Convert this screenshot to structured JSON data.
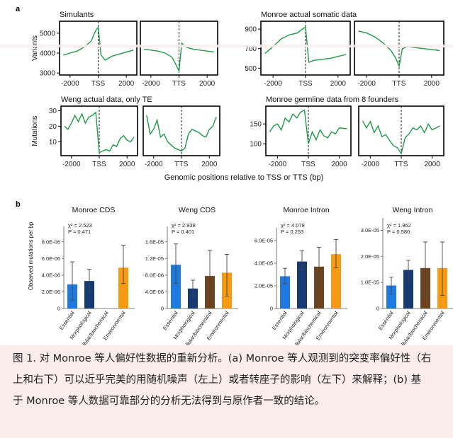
{
  "panel_a": {
    "label": "a",
    "x_axis_label": "Genomic positions relative to TSS or TTS (bp)",
    "x_ticks": [
      "-2000",
      "TSS",
      "2000",
      "-2000",
      "TTS",
      "2000"
    ]
  },
  "panel_b": {
    "label": "b",
    "y_axis_label": "Observed mutations per bp"
  },
  "colors": {
    "line": "#1f9a46",
    "Essential": "#1f7ae0",
    "Morphological": "#173a73",
    "Cellular/biochemical": "#6e4420",
    "Environmental": "#f59a12"
  },
  "chart_data": [
    {
      "type": "line",
      "title": "Simulants",
      "ylabel": "Variants",
      "yticks": [
        "3000",
        "4000",
        "5000"
      ],
      "ylim": [
        2900,
        5600
      ],
      "series": [
        {
          "name": "TSS",
          "x": [
            -2500,
            -2000,
            -1500,
            -1000,
            -500,
            -200,
            0,
            200,
            500,
            1000,
            1500,
            2000,
            2500
          ],
          "y": [
            3900,
            4000,
            4100,
            4300,
            4600,
            5100,
            5300,
            3900,
            3650,
            3850,
            3950,
            4050,
            4150
          ]
        },
        {
          "name": "TTS",
          "x": [
            -2500,
            -2000,
            -1500,
            -1000,
            -500,
            -200,
            0,
            200,
            500,
            1000,
            1500,
            2000,
            2500
          ],
          "y": [
            4200,
            4150,
            4100,
            4000,
            3800,
            3400,
            3100,
            4500,
            4300,
            4200,
            4150,
            4100,
            4050
          ]
        }
      ]
    },
    {
      "type": "line",
      "title": "Monroe actual somatic data",
      "ylabel": "",
      "yticks": [
        "500",
        "700",
        "900"
      ],
      "ylim": [
        430,
        980
      ],
      "series": [
        {
          "name": "TSS",
          "x": [
            -2500,
            -2000,
            -1500,
            -1000,
            -500,
            -200,
            0,
            200,
            500,
            1000,
            1500,
            2000,
            2500
          ],
          "y": [
            650,
            720,
            800,
            840,
            860,
            900,
            920,
            560,
            580,
            590,
            600,
            620,
            640
          ]
        },
        {
          "name": "TTS",
          "x": [
            -2500,
            -2000,
            -1500,
            -1000,
            -500,
            -200,
            0,
            200,
            500,
            1000,
            1500,
            2000,
            2500
          ],
          "y": [
            880,
            860,
            820,
            760,
            680,
            600,
            520,
            700,
            720,
            710,
            700,
            690,
            680
          ]
        }
      ]
    },
    {
      "type": "line",
      "title": "Weng actual data, only TE",
      "ylabel": "Mutations",
      "yticks": [
        "10",
        "20",
        "30"
      ],
      "ylim": [
        1,
        33
      ],
      "series": [
        {
          "name": "TSS",
          "x": [
            -2500,
            -2250,
            -2000,
            -1750,
            -1500,
            -1250,
            -1000,
            -750,
            -500,
            -250,
            0,
            250,
            500,
            750,
            1000,
            1250,
            1500,
            1750,
            2000,
            2250,
            2500
          ],
          "y": [
            20,
            18,
            22,
            27,
            23,
            28,
            22,
            26,
            27,
            29,
            3,
            4,
            5,
            4,
            8,
            7,
            12,
            14,
            11,
            10,
            13
          ]
        },
        {
          "name": "TTS",
          "x": [
            -2500,
            -2250,
            -2000,
            -1750,
            -1500,
            -1250,
            -1000,
            -750,
            -500,
            -250,
            0,
            250,
            500,
            750,
            1000,
            1250,
            1500,
            1750,
            2000,
            2250,
            2500
          ],
          "y": [
            27,
            15,
            18,
            24,
            13,
            15,
            10,
            8,
            6,
            5,
            4,
            6,
            15,
            18,
            17,
            16,
            14,
            13,
            18,
            20,
            26
          ]
        }
      ]
    },
    {
      "type": "line",
      "title": "Monroe germline data from 8 founders",
      "ylabel": "",
      "yticks": [
        "100",
        "150"
      ],
      "ylim": [
        70,
        195
      ],
      "series": [
        {
          "name": "TSS",
          "x": [
            -2500,
            -2250,
            -2000,
            -1750,
            -1500,
            -1250,
            -1000,
            -750,
            -500,
            -250,
            0,
            250,
            500,
            750,
            1000,
            1250,
            1500,
            1750,
            2000,
            2500
          ],
          "y": [
            130,
            145,
            150,
            135,
            165,
            155,
            175,
            165,
            180,
            185,
            100,
            130,
            110,
            135,
            120,
            115,
            130,
            125,
            140,
            138
          ]
        },
        {
          "name": "TTS",
          "x": [
            -2500,
            -2250,
            -2000,
            -1750,
            -1500,
            -1250,
            -1000,
            -750,
            -500,
            -250,
            0,
            250,
            500,
            750,
            1000,
            1250,
            1500,
            1750,
            2000,
            2500
          ],
          "y": [
            158,
            140,
            156,
            128,
            145,
            118,
            123,
            108,
            95,
            90,
            75,
            115,
            125,
            140,
            135,
            145,
            128,
            150,
            135,
            145
          ]
        }
      ]
    },
    {
      "type": "bar",
      "title": "Monroe CDS",
      "stat1": "χ² = 2.523",
      "stat2": "P = 0.471",
      "categories": [
        "Essential",
        "Morphological",
        "Cellular/biochemical",
        "Environmental"
      ],
      "values": [
        2.9e-06,
        3.3e-06,
        0,
        4.9e-06
      ],
      "err_low": [
        1e-06,
        2e-06,
        0,
        3e-06
      ],
      "err_high": [
        5.6e-06,
        4.7e-06,
        0,
        7.6e-06
      ],
      "yticks": [
        "0",
        "2.0E-06",
        "4.0E-06",
        "6.0E-06",
        "8.0E-06"
      ],
      "ylim": [
        0,
        9e-06
      ]
    },
    {
      "type": "bar",
      "title": "Weng CDS",
      "stat1": "χ² = 2.938",
      "stat2": "P = 0.401",
      "categories": [
        "Essential",
        "Morphological",
        "Cellular/biochemical",
        "Environmental"
      ],
      "values": [
        1.05e-05,
        4.8e-06,
        7.8e-06,
        8.6e-06
      ],
      "err_low": [
        6e-06,
        3e-06,
        2.5e-06,
        3e-06
      ],
      "err_high": [
        1.55e-05,
        6.8e-06,
        1.4e-05,
        1.3e-05
      ],
      "yticks": [
        "0",
        "4.0E-06",
        "8.0E-06",
        "1.2E-05",
        "1.6E-05"
      ],
      "ylim": [
        0,
        1.8e-05
      ]
    },
    {
      "type": "bar",
      "title": "Monroe Intron",
      "stat1": "χ² = 4.078",
      "stat2": "P = 0.253",
      "categories": [
        "Essential",
        "Morphological",
        "Cellular/biochemical",
        "Environmental"
      ],
      "values": [
        2.85e-05,
        4.15e-05,
        3.7e-05,
        4.8e-05
      ],
      "err_low": [
        2.2e-05,
        3.4e-05,
        2e-05,
        3.6e-05
      ],
      "err_high": [
        3.55e-05,
        5.1e-05,
        5.4e-05,
        6.1e-05
      ],
      "yticks": [
        "0",
        "2.0E-05",
        "4.0E-05",
        "6.0E-05"
      ],
      "ylim": [
        0,
        6.5e-05
      ]
    },
    {
      "type": "bar",
      "title": "Weng Intron",
      "stat1": "χ² = 1.962",
      "stat2": "P = 0.580",
      "categories": [
        "Essential",
        "Morphological",
        "Cellular/biochemical",
        "Environmental"
      ],
      "values": [
        8.8e-06,
        1.48e-05,
        1.55e-05,
        1.55e-05
      ],
      "err_low": [
        5.5e-06,
        1.05e-05,
        5e-06,
        5e-06
      ],
      "err_high": [
        1.2e-05,
        1.85e-05,
        2.55e-05,
        2.55e-05
      ],
      "yticks": [
        "0",
        "1.0E-05",
        "2.0E-05",
        "3.0E-05"
      ],
      "ylim": [
        0,
        3.2e-05
      ]
    }
  ],
  "caption": {
    "line1": "图 1. 对 Monroe 等人偏好性数据的重新分析。(a) Monroe 等人观测到的突变率偏好性（右",
    "line2": "上和右下）可以近乎完美的用随机噪声（左上）或者转座子的影响（左下）来解释；(b) 基",
    "line3": "于 Monroe 等人数据可靠部分的分析无法得到与原作者一致的结论。"
  }
}
